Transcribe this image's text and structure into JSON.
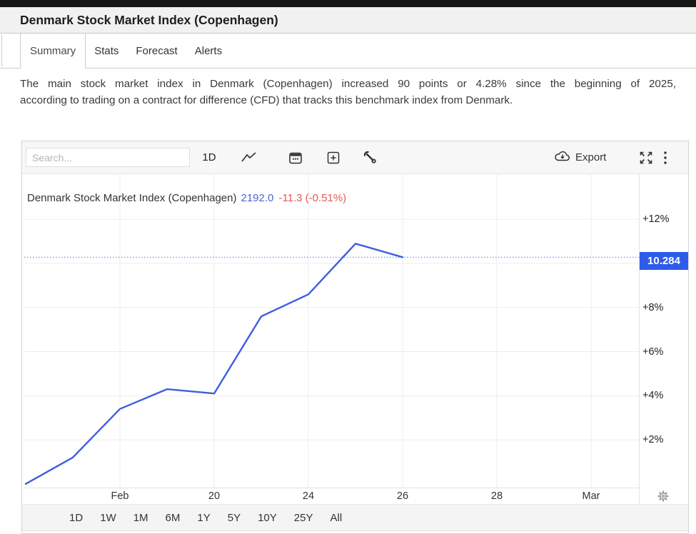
{
  "page": {
    "title": "Denmark Stock Market Index (Copenhagen)"
  },
  "tabs": [
    {
      "label": "Summary",
      "active": true
    },
    {
      "label": "Stats",
      "active": false
    },
    {
      "label": "Forecast",
      "active": false
    },
    {
      "label": "Alerts",
      "active": false
    }
  ],
  "description": {
    "lines": [
      "The main stock market index in Denmark (Copenhagen) increased 90 points or 4.28% since the beginning of 2025,",
      "according to trading on a contract for difference (CFD) that tracks this benchmark index from Denmark."
    ]
  },
  "toolbar": {
    "search_placeholder": "Search...",
    "interval_label": "1D",
    "export_label": "Export",
    "icons": [
      "line-type",
      "calendar",
      "add-compare",
      "tools-wrench",
      "export-cloud",
      "fullscreen",
      "more-menu",
      "settings-gear"
    ]
  },
  "legend": {
    "name": "Denmark Stock Market Index (Copenhagen)",
    "value": "2192.0",
    "change": "-11.3 (-0.51%)"
  },
  "chart_data": {
    "type": "line",
    "title": "Denmark Stock Market Index (Copenhagen)",
    "unit": "percent change over displayed period",
    "current_value": 10.284,
    "current_value_label": "10.284",
    "series": [
      {
        "name": "Denmark Stock Market Index (Copenhagen)",
        "values_pct": [
          0.0,
          1.2,
          3.4,
          4.3,
          4.1,
          7.6,
          8.6,
          10.9,
          10.284
        ]
      }
    ],
    "x_ticks": [
      {
        "i": 2,
        "label": "Feb"
      },
      {
        "i": 4,
        "label": "20"
      },
      {
        "i": 6,
        "label": "24"
      },
      {
        "i": 8,
        "label": "26"
      },
      {
        "i": 10,
        "label": "28"
      },
      {
        "i": 12,
        "label": "Mar"
      }
    ],
    "x_index_max": 13,
    "y_grid": [
      2,
      4,
      6,
      8,
      10,
      12
    ],
    "y_ticks": [
      {
        "pct": 12,
        "label": "+12%"
      },
      {
        "pct": 8,
        "label": "+8%"
      },
      {
        "pct": 6,
        "label": "+6%"
      },
      {
        "pct": 4,
        "label": "+4%"
      },
      {
        "pct": 2,
        "label": "+2%"
      }
    ],
    "ylim": [
      -0.2,
      14.05
    ],
    "grid": true,
    "legend_position": "top-left",
    "colors": {
      "line": "#3D5EE0",
      "dotted": "#5B78F0",
      "badge_bg": "#2E5BEA",
      "badge_text": "#FFFFFF",
      "value_blue": "#4F63D2",
      "change_red": "#E95757",
      "gridline": "#EDEDED",
      "axisline": "#E2E2E2"
    }
  },
  "range_buttons": [
    "1D",
    "1W",
    "1M",
    "6M",
    "1Y",
    "5Y",
    "10Y",
    "25Y",
    "All"
  ]
}
